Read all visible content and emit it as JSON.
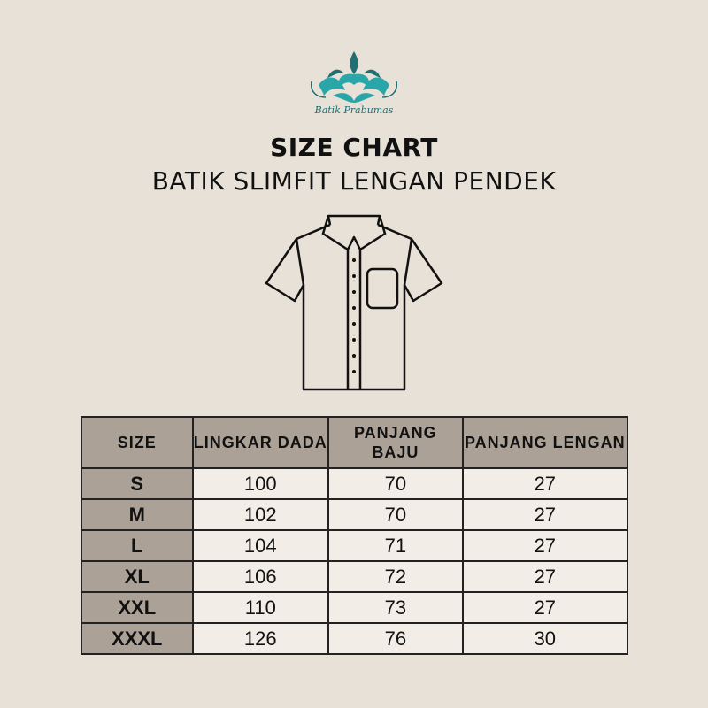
{
  "brand": {
    "name": "Batik Prabumas",
    "colors": {
      "teal": "#2aa6a8",
      "dark_teal": "#1f6f73"
    }
  },
  "header": {
    "title": "SIZE CHART",
    "subtitle": "BATIK SLIMFIT LENGAN PENDEK"
  },
  "illustration": {
    "icon": "short-sleeve-shirt-icon"
  },
  "table": {
    "columns": [
      "SIZE",
      "LINGKAR DADA",
      "PANJANG BAJU",
      "PANJANG LENGAN"
    ],
    "rows": [
      {
        "size": "S",
        "lingkar_dada": "100",
        "panjang_baju": "70",
        "panjang_lengan": "27"
      },
      {
        "size": "M",
        "lingkar_dada": "102",
        "panjang_baju": "70",
        "panjang_lengan": "27"
      },
      {
        "size": "L",
        "lingkar_dada": "104",
        "panjang_baju": "71",
        "panjang_lengan": "27"
      },
      {
        "size": "XL",
        "lingkar_dada": "106",
        "panjang_baju": "72",
        "panjang_lengan": "27"
      },
      {
        "size": "XXL",
        "lingkar_dada": "110",
        "panjang_baju": "73",
        "panjang_lengan": "27"
      },
      {
        "size": "XXXL",
        "lingkar_dada": "126",
        "panjang_baju": "76",
        "panjang_lengan": "30"
      }
    ],
    "colors": {
      "header_bg": "#aca196",
      "cell_bg": "#f2eee7"
    }
  }
}
